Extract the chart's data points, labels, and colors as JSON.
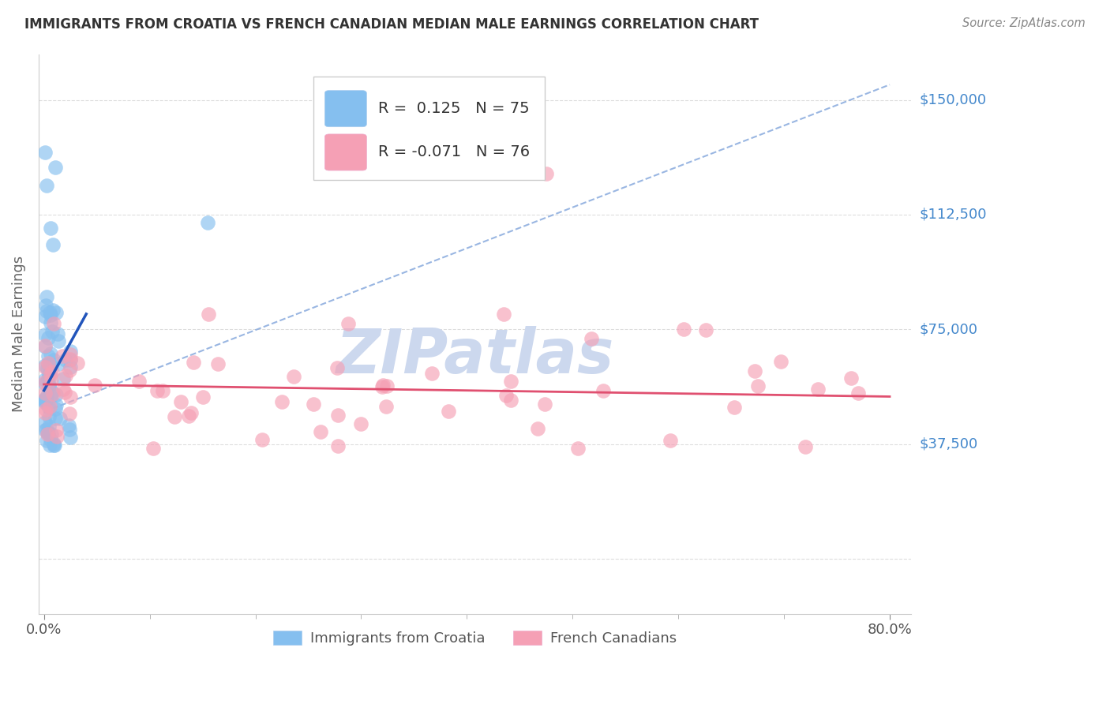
{
  "title": "IMMIGRANTS FROM CROATIA VS FRENCH CANADIAN MEDIAN MALE EARNINGS CORRELATION CHART",
  "source": "Source: ZipAtlas.com",
  "ylabel": "Median Male Earnings",
  "ytick_values": [
    0,
    37500,
    75000,
    112500,
    150000
  ],
  "ytick_labels": [
    "",
    "$37,500",
    "$75,000",
    "$112,500",
    "$150,000"
  ],
  "ymax": 165000,
  "ymin": -18000,
  "xmax": 0.82,
  "xmin": -0.005,
  "R_blue": 0.125,
  "N_blue": 75,
  "R_pink": -0.071,
  "N_pink": 76,
  "blue_color": "#85bfef",
  "blue_line_color": "#2255bb",
  "pink_color": "#f5a0b5",
  "pink_line_color": "#e05070",
  "dashed_line_color": "#88aadd",
  "watermark_color": "#ccd8ee",
  "grid_color": "#dddddd",
  "title_color": "#333333",
  "axis_label_color": "#666666",
  "right_tick_color": "#4488cc",
  "legend_label_blue": "Immigrants from Croatia",
  "legend_label_pink": "French Canadians"
}
